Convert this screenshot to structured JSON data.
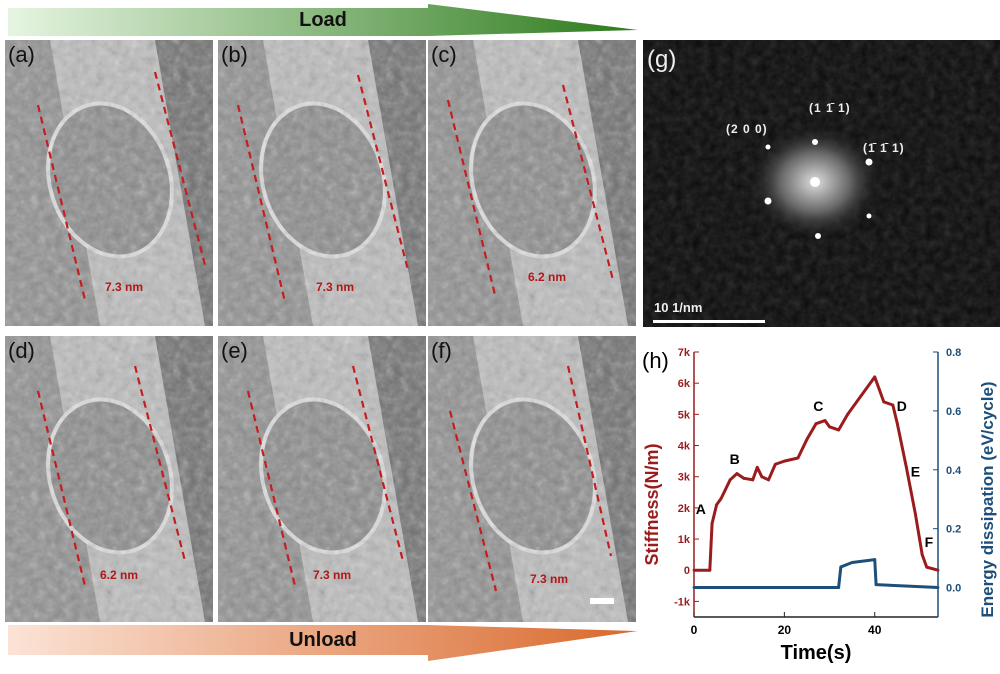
{
  "load_arrow": {
    "label": "Load",
    "color": "#2e7d1c"
  },
  "unload_arrow": {
    "label": "Unload",
    "color": "#e07a3c"
  },
  "panels": [
    {
      "label": "(a)",
      "measurement": "7.3 nm"
    },
    {
      "label": "(b)",
      "measurement": "7.3 nm"
    },
    {
      "label": "(c)",
      "measurement": "6.2 nm"
    },
    {
      "label": "(d)",
      "measurement": "6.2 nm"
    },
    {
      "label": "(e)",
      "measurement": "7.3 nm"
    },
    {
      "label": "(f)",
      "measurement": "7.3 nm"
    }
  ],
  "fft": {
    "label": "(g)",
    "spots": [
      "(2 0 0)",
      "(1 1̄ 1)",
      "(1̄ 1̄ 1)"
    ],
    "scale_bar": "10 1/nm"
  },
  "chart_data": {
    "panel_label": "(h)",
    "type": "line",
    "xlabel": "Time(s)",
    "ylabel": "Stiffness(N/m)",
    "y2label": "Energy dissipation (eV/cycle)",
    "xlim": [
      0,
      54
    ],
    "ylim": [
      -1500,
      7000
    ],
    "y2lim": [
      -0.1,
      0.8
    ],
    "xticks": [
      0,
      20,
      40
    ],
    "yticks": [
      -1000,
      0,
      1000,
      2000,
      3000,
      4000,
      5000,
      6000,
      7000
    ],
    "ytick_labels": [
      "-1k",
      "0",
      "1k",
      "2k",
      "3k",
      "4k",
      "5k",
      "6k",
      "7k"
    ],
    "y2ticks": [
      0.0,
      0.2,
      0.4,
      0.6,
      0.8
    ],
    "y2tick_labels": [
      "0.0",
      "0.2",
      "0.4",
      "0.6",
      "0.8"
    ],
    "grid": false,
    "series": [
      {
        "axis": "left",
        "color": "#9b1c1c",
        "x": [
          0,
          3.5,
          4,
          5,
          6,
          8,
          9.5,
          11,
          13,
          14,
          15,
          16.5,
          18,
          20,
          23,
          25,
          27,
          29,
          30,
          32,
          34,
          37,
          40,
          41,
          42,
          44,
          45,
          47,
          49,
          50.5,
          51.5,
          54
        ],
        "y": [
          0,
          0,
          1500,
          2100,
          2300,
          2900,
          3100,
          2950,
          2900,
          3300,
          3000,
          2900,
          3400,
          3500,
          3600,
          4200,
          4700,
          4800,
          4600,
          4500,
          5000,
          5600,
          6200,
          5800,
          5400,
          5300,
          4700,
          3300,
          1800,
          500,
          100,
          0
        ]
      },
      {
        "axis": "right",
        "color": "#1d4f7a",
        "x": [
          0,
          32,
          32.5,
          35,
          40,
          40.3,
          54
        ],
        "y": [
          0,
          0,
          0.07,
          0.085,
          0.095,
          0.01,
          0
        ]
      }
    ],
    "annotations": [
      {
        "text": "A",
        "x": 1.5,
        "y": 1800
      },
      {
        "text": "B",
        "x": 9,
        "y": 3400
      },
      {
        "text": "C",
        "x": 27.5,
        "y": 5100
      },
      {
        "text": "D",
        "x": 46,
        "y": 5100
      },
      {
        "text": "E",
        "x": 49,
        "y": 3000
      },
      {
        "text": "F",
        "x": 52,
        "y": 750
      }
    ]
  }
}
